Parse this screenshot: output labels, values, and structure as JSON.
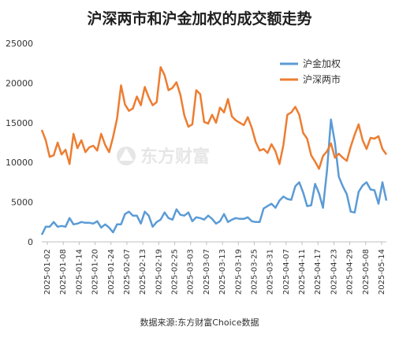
{
  "chart_data": {
    "type": "line",
    "title": "沪深两市和沪金加权的成交额走势",
    "source": "数据来源:东方财富Choice数据",
    "watermark": "东方财富",
    "ylim": [
      0,
      25000
    ],
    "yticks": [
      0,
      5000,
      10000,
      15000,
      20000,
      25000
    ],
    "grid": false,
    "legend_position": "top-right",
    "x_tick_labels": [
      "2025-01-02",
      "2025-01-08",
      "2025-01-14",
      "2025-01-20",
      "2025-01-24",
      "2025-02-07",
      "2025-02-13",
      "2025-02-19",
      "2025-02-25",
      "2025-03-03",
      "2025-03-07",
      "2025-03-13",
      "2025-03-19",
      "2025-03-25",
      "2025-03-31",
      "2025-04-07",
      "2025-04-11",
      "2025-04-17",
      "2025-04-23",
      "2025-04-29",
      "2025-05-08",
      "2025-05-14"
    ],
    "series": [
      {
        "name": "沪金加权",
        "color": "#5b9bd5",
        "values": [
          900,
          1900,
          1900,
          2500,
          1900,
          2000,
          1900,
          3000,
          2200,
          2300,
          2500,
          2400,
          2400,
          2300,
          2600,
          1800,
          2200,
          1800,
          1200,
          2200,
          2200,
          3500,
          3800,
          3300,
          3300,
          2300,
          3800,
          3300,
          1900,
          2500,
          2800,
          3700,
          3000,
          2800,
          4100,
          3400,
          3300,
          3700,
          2600,
          3100,
          3000,
          2800,
          3300,
          2900,
          2300,
          2600,
          3500,
          2500,
          2800,
          3000,
          2900,
          2900,
          3100,
          2600,
          2500,
          2500,
          4200,
          4500,
          4800,
          4300,
          5200,
          5700,
          5400,
          5300,
          7000,
          7500,
          6200,
          4500,
          4600,
          7300,
          6100,
          4300,
          9000,
          15400,
          12500,
          8200,
          7000,
          6000,
          3800,
          3700,
          6300,
          7100,
          7500,
          6600,
          6500,
          4800,
          7500,
          5200
        ]
      },
      {
        "name": "沪深两市",
        "color": "#ed7d31",
        "values": [
          14100,
          12800,
          10700,
          10900,
          12500,
          11000,
          11600,
          9800,
          13600,
          11800,
          12800,
          11300,
          11900,
          12100,
          11500,
          13600,
          12200,
          11300,
          13200,
          15500,
          19700,
          17300,
          16500,
          16800,
          18300,
          17200,
          19500,
          18200,
          17200,
          17600,
          22000,
          21000,
          19100,
          19400,
          20100,
          18500,
          15900,
          14500,
          14800,
          19100,
          18600,
          15100,
          14900,
          16000,
          15000,
          16900,
          16300,
          18000,
          15800,
          15300,
          15000,
          14700,
          15700,
          14400,
          12600,
          11500,
          11700,
          11200,
          12300,
          11400,
          9800,
          12200,
          16000,
          16300,
          17000,
          16000,
          13700,
          13000,
          10900,
          10100,
          9200,
          10800,
          11400,
          12400,
          10600,
          11100,
          10600,
          10200,
          12000,
          13500,
          14800,
          12800,
          11700,
          13100,
          13000,
          13300,
          11700,
          11000
        ]
      }
    ]
  }
}
